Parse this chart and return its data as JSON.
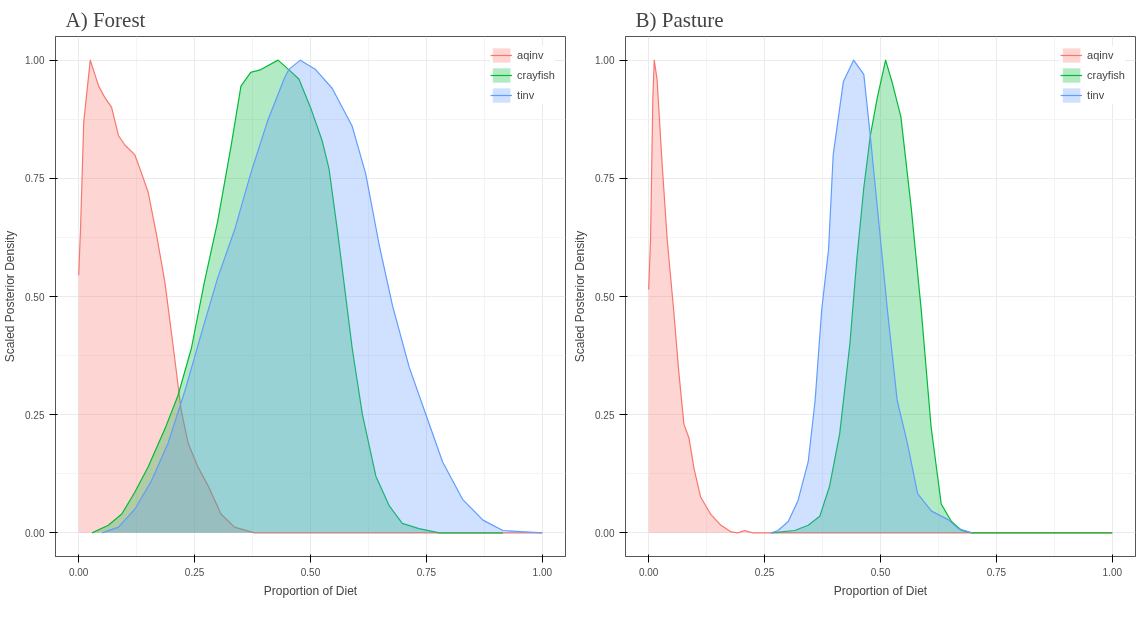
{
  "chart_data": [
    {
      "type": "area",
      "title": "A) Forest",
      "xlabel": "Proportion of Diet",
      "ylabel": "Scaled Posterior Density",
      "xlim": [
        -0.05,
        1.05
      ],
      "ylim": [
        -0.05,
        1.05
      ],
      "xticks": [
        {
          "value": 0,
          "label": "0.00"
        },
        {
          "value": 0.25,
          "label": "0.25"
        },
        {
          "value": 0.5,
          "label": "0.50"
        },
        {
          "value": 0.75,
          "label": "0.75"
        },
        {
          "value": 1,
          "label": "1.00"
        }
      ],
      "yticks": [
        {
          "value": 0,
          "label": "0.00"
        },
        {
          "value": 0.25,
          "label": "0.25"
        },
        {
          "value": 0.5,
          "label": "0.50"
        },
        {
          "value": 0.75,
          "label": "0.75"
        },
        {
          "value": 1,
          "label": "1.00"
        }
      ],
      "grid": true,
      "legend": "top right",
      "series": [
        {
          "name": "aqinv",
          "color": "#f8766d",
          "x": [
            0,
            0.004,
            0.011,
            0.025,
            0.043,
            0.057,
            0.071,
            0.086,
            0.1,
            0.121,
            0.136,
            0.15,
            0.168,
            0.186,
            0.207,
            0.221,
            0.236,
            0.257,
            0.279,
            0.307,
            0.336,
            0.379,
            1.0
          ],
          "values": [
            0.545,
            0.644,
            0.87,
            1.0,
            0.945,
            0.92,
            0.9,
            0.84,
            0.82,
            0.8,
            0.76,
            0.72,
            0.63,
            0.53,
            0.37,
            0.26,
            0.19,
            0.14,
            0.1,
            0.04,
            0.012,
            0,
            0
          ]
        },
        {
          "name": "crayfish",
          "color": "#00ba38",
          "x": [
            0.029,
            0.064,
            0.093,
            0.121,
            0.15,
            0.186,
            0.214,
            0.243,
            0.271,
            0.3,
            0.329,
            0.35,
            0.371,
            0.393,
            0.43,
            0.453,
            0.475,
            0.5,
            0.525,
            0.54,
            0.558,
            0.576,
            0.59,
            0.612,
            0.641,
            0.67,
            0.698,
            0.734,
            0.778,
            0.915
          ],
          "values": [
            0,
            0.016,
            0.04,
            0.086,
            0.14,
            0.22,
            0.29,
            0.39,
            0.53,
            0.66,
            0.82,
            0.945,
            0.974,
            0.98,
            1.0,
            0.98,
            0.96,
            0.9,
            0.83,
            0.77,
            0.64,
            0.5,
            0.39,
            0.25,
            0.12,
            0.057,
            0.02,
            0.009,
            0,
            0
          ]
        },
        {
          "name": "tinv",
          "color": "#619cff",
          "x": [
            0.05,
            0.086,
            0.121,
            0.157,
            0.193,
            0.229,
            0.264,
            0.3,
            0.336,
            0.371,
            0.407,
            0.443,
            0.453,
            0.478,
            0.511,
            0.547,
            0.59,
            0.619,
            0.648,
            0.677,
            0.713,
            0.749,
            0.785,
            0.828,
            0.872,
            0.915,
            1.0
          ],
          "values": [
            0,
            0.012,
            0.05,
            0.11,
            0.19,
            0.3,
            0.42,
            0.54,
            0.64,
            0.76,
            0.87,
            0.96,
            0.98,
            1.0,
            0.98,
            0.94,
            0.86,
            0.76,
            0.61,
            0.48,
            0.35,
            0.25,
            0.15,
            0.071,
            0.027,
            0.005,
            0
          ]
        }
      ]
    },
    {
      "type": "area",
      "title": "B) Pasture",
      "xlabel": "Proportion of Diet",
      "ylabel": "Scaled Posterior Density",
      "xlim": [
        -0.05,
        1.05
      ],
      "ylim": [
        -0.05,
        1.05
      ],
      "xticks": [
        {
          "value": 0,
          "label": "0.00"
        },
        {
          "value": 0.25,
          "label": "0.25"
        },
        {
          "value": 0.5,
          "label": "0.50"
        },
        {
          "value": 0.75,
          "label": "0.75"
        },
        {
          "value": 1,
          "label": "1.00"
        }
      ],
      "yticks": [
        {
          "value": 0,
          "label": "0.00"
        },
        {
          "value": 0.25,
          "label": "0.25"
        },
        {
          "value": 0.5,
          "label": "0.50"
        },
        {
          "value": 0.75,
          "label": "0.75"
        },
        {
          "value": 1,
          "label": "1.00"
        }
      ],
      "grid": true,
      "legend": "top right",
      "series": [
        {
          "name": "aqinv",
          "color": "#f8766d",
          "x": [
            0,
            0.004,
            0.009,
            0.012,
            0.018,
            0.029,
            0.04,
            0.054,
            0.065,
            0.076,
            0.087,
            0.098,
            0.112,
            0.134,
            0.156,
            0.178,
            0.192,
            0.207,
            0.225,
            1.0
          ],
          "values": [
            0.515,
            0.62,
            0.92,
            1.0,
            0.96,
            0.78,
            0.62,
            0.47,
            0.34,
            0.23,
            0.2,
            0.135,
            0.076,
            0.039,
            0.016,
            0.002,
            0,
            0.005,
            0,
            0
          ]
        },
        {
          "name": "crayfish",
          "color": "#00ba38",
          "x": [
            0.264,
            0.315,
            0.344,
            0.369,
            0.39,
            0.412,
            0.434,
            0.449,
            0.464,
            0.478,
            0.493,
            0.511,
            0.526,
            0.544,
            0.566,
            0.588,
            0.609,
            0.631,
            0.653,
            0.675,
            0.697,
            1.0
          ],
          "values": [
            0,
            0.005,
            0.016,
            0.035,
            0.098,
            0.21,
            0.4,
            0.58,
            0.73,
            0.84,
            0.92,
            1.0,
            0.95,
            0.88,
            0.69,
            0.47,
            0.225,
            0.061,
            0.024,
            0.005,
            0,
            0
          ]
        },
        {
          "name": "tinv",
          "color": "#619cff",
          "x": [
            0.264,
            0.279,
            0.301,
            0.322,
            0.344,
            0.359,
            0.373,
            0.388,
            0.398,
            0.42,
            0.442,
            0.464,
            0.478,
            0.493,
            0.515,
            0.536,
            0.558,
            0.58,
            0.61,
            0.646,
            0.668,
            0.682,
            0.697
          ],
          "values": [
            0,
            0.005,
            0.024,
            0.068,
            0.15,
            0.28,
            0.47,
            0.6,
            0.8,
            0.955,
            1.0,
            0.97,
            0.84,
            0.69,
            0.47,
            0.28,
            0.19,
            0.083,
            0.046,
            0.028,
            0.009,
            0.005,
            0
          ]
        }
      ]
    }
  ]
}
